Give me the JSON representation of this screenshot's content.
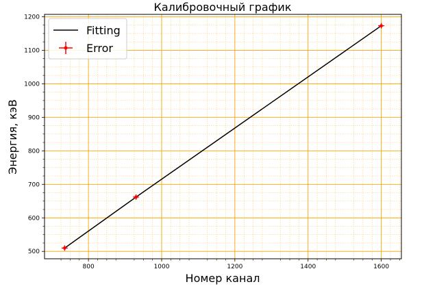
{
  "chart_data": {
    "type": "line",
    "title": "Калибровочный график",
    "xlabel": "Номер канал",
    "ylabel": "Энергия, кэВ",
    "xlim": [
      680,
      1655
    ],
    "ylim": [
      478,
      1207
    ],
    "x_ticks": [
      800,
      1000,
      1200,
      1400,
      1600
    ],
    "y_ticks": [
      500,
      600,
      700,
      800,
      900,
      1000,
      1100,
      1200
    ],
    "x_tick_labels": [
      "800",
      "1000",
      "1200",
      "1400",
      "1600"
    ],
    "y_tick_labels": [
      "500",
      "600",
      "700",
      "800",
      "900",
      "1000",
      "1100",
      "1200"
    ],
    "grid": true,
    "grid_color": "#f5a500",
    "legend_position": "top-left",
    "series": [
      {
        "name": "Fitting",
        "kind": "line",
        "color": "#000000",
        "x": [
          735,
          930,
          1600
        ],
        "y": [
          510,
          662,
          1173
        ]
      },
      {
        "name": "Error",
        "kind": "errorbar",
        "color": "#ff0000",
        "marker": "plus",
        "x": [
          735,
          930,
          1600
        ],
        "y": [
          510,
          662,
          1173
        ]
      }
    ]
  }
}
